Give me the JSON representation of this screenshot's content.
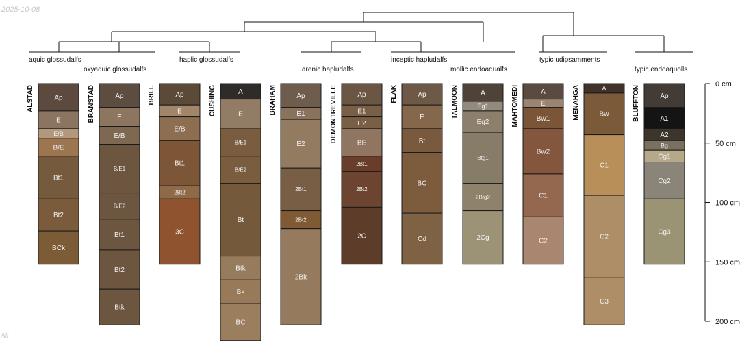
{
  "date_label": "2025-10-08",
  "corner_label": "All",
  "depth_axis": {
    "unit": "cm",
    "min": 0,
    "max": 200,
    "ticks": [
      0,
      50,
      100,
      150,
      200
    ],
    "tick_labels": [
      "0 cm",
      "50 cm",
      "100 cm",
      "150 cm",
      "200 cm"
    ]
  },
  "taxa": [
    "aquic glossudalfs",
    "oxyaquic glossudalfs",
    "haplic glossudalfs",
    "arenic hapludalfs",
    "inceptic hapludalfs",
    "mollic endoaqualfs",
    "typic udipsamments",
    "typic endoaquolls"
  ],
  "profiles": [
    {
      "name": "ALSTAD",
      "horizons": [
        {
          "name": "Ap",
          "top": 0,
          "bottom": 23,
          "color": "#5b4a3d"
        },
        {
          "name": "E",
          "top": 23,
          "bottom": 38,
          "color": "#8c7560"
        },
        {
          "name": "E/B",
          "top": 38,
          "bottom": 46,
          "color": "#b4987c"
        },
        {
          "name": "B/E",
          "top": 46,
          "bottom": 61,
          "color": "#9c7650"
        },
        {
          "name": "Bt1",
          "top": 61,
          "bottom": 97,
          "color": "#765a3e"
        },
        {
          "name": "Bt2",
          "top": 97,
          "bottom": 124,
          "color": "#7a5c3d"
        },
        {
          "name": "BCk",
          "top": 124,
          "bottom": 152,
          "color": "#7c5c37"
        }
      ]
    },
    {
      "name": "BRANSTAD",
      "horizons": [
        {
          "name": "Ap",
          "top": 0,
          "bottom": 20,
          "color": "#5d4c40"
        },
        {
          "name": "E",
          "top": 20,
          "bottom": 36,
          "color": "#8c7660"
        },
        {
          "name": "E/B",
          "top": 36,
          "bottom": 51,
          "color": "#7e6852"
        },
        {
          "name": "B/E1",
          "top": 51,
          "bottom": 92,
          "color": "#6c5640"
        },
        {
          "name": "B/E2",
          "top": 92,
          "bottom": 114,
          "color": "#6c5640"
        },
        {
          "name": "Bt1",
          "top": 114,
          "bottom": 140,
          "color": "#6c5640"
        },
        {
          "name": "Bt2",
          "top": 140,
          "bottom": 173,
          "color": "#6c5640"
        },
        {
          "name": "Btk",
          "top": 173,
          "bottom": 203,
          "color": "#6c5640"
        }
      ]
    },
    {
      "name": "BRILL",
      "horizons": [
        {
          "name": "Ap",
          "top": 0,
          "bottom": 18,
          "color": "#5b4a38"
        },
        {
          "name": "E",
          "top": 18,
          "bottom": 28,
          "color": "#a1866a"
        },
        {
          "name": "E/B",
          "top": 28,
          "bottom": 48,
          "color": "#8e6e50"
        },
        {
          "name": "Bt1",
          "top": 48,
          "bottom": 86,
          "color": "#7c5636"
        },
        {
          "name": "2Bt2",
          "top": 86,
          "bottom": 97,
          "color": "#8f6a48"
        },
        {
          "name": "3C",
          "top": 97,
          "bottom": 152,
          "color": "#8f5330"
        }
      ]
    },
    {
      "name": "CUSHING",
      "horizons": [
        {
          "name": "A",
          "top": 0,
          "bottom": 13,
          "color": "#2f2b28"
        },
        {
          "name": "E",
          "top": 13,
          "bottom": 38,
          "color": "#937c66"
        },
        {
          "name": "B/E1",
          "top": 38,
          "bottom": 61,
          "color": "#7a5c3e"
        },
        {
          "name": "B/E2",
          "top": 61,
          "bottom": 84,
          "color": "#7a5c3e"
        },
        {
          "name": "Bt",
          "top": 84,
          "bottom": 145,
          "color": "#74593b"
        },
        {
          "name": "Btk",
          "top": 145,
          "bottom": 165,
          "color": "#967b5c"
        },
        {
          "name": "Bk",
          "top": 165,
          "bottom": 185,
          "color": "#987a5a"
        },
        {
          "name": "BC",
          "top": 185,
          "bottom": 216,
          "color": "#9b7e5e"
        }
      ]
    },
    {
      "name": "BRAHAM",
      "horizons": [
        {
          "name": "Ap",
          "top": 0,
          "bottom": 20,
          "color": "#6e5c4c"
        },
        {
          "name": "E1",
          "top": 20,
          "bottom": 30,
          "color": "#8a735c"
        },
        {
          "name": "E2",
          "top": 30,
          "bottom": 71,
          "color": "#937b62"
        },
        {
          "name": "2Bt1",
          "top": 71,
          "bottom": 107,
          "color": "#785e44"
        },
        {
          "name": "2Bt2",
          "top": 107,
          "bottom": 122,
          "color": "#7f5a34"
        },
        {
          "name": "2Bk",
          "top": 122,
          "bottom": 203,
          "color": "#957a5e"
        }
      ]
    },
    {
      "name": "DEMONTREVILLE",
      "horizons": [
        {
          "name": "Ap",
          "top": 0,
          "bottom": 18,
          "color": "#6b5644"
        },
        {
          "name": "E1",
          "top": 18,
          "bottom": 28,
          "color": "#7a5f47"
        },
        {
          "name": "E2",
          "top": 28,
          "bottom": 38,
          "color": "#7a5f47"
        },
        {
          "name": "BE",
          "top": 38,
          "bottom": 61,
          "color": "#907560"
        },
        {
          "name": "2Bt1",
          "top": 61,
          "bottom": 74,
          "color": "#6a3d2a"
        },
        {
          "name": "2Bt2",
          "top": 74,
          "bottom": 104,
          "color": "#6c4430"
        },
        {
          "name": "2C",
          "top": 104,
          "bottom": 152,
          "color": "#5e3c2a"
        }
      ]
    },
    {
      "name": "FLAK",
      "horizons": [
        {
          "name": "Ap",
          "top": 0,
          "bottom": 18,
          "color": "#6e5846"
        },
        {
          "name": "E",
          "top": 18,
          "bottom": 38,
          "color": "#85684c"
        },
        {
          "name": "Bt",
          "top": 38,
          "bottom": 58,
          "color": "#7a5a3e"
        },
        {
          "name": "BC",
          "top": 58,
          "bottom": 109,
          "color": "#7d5c3e"
        },
        {
          "name": "Cd",
          "top": 109,
          "bottom": 152,
          "color": "#7f6244"
        }
      ]
    },
    {
      "name": "TALMOON",
      "horizons": [
        {
          "name": "A",
          "top": 0,
          "bottom": 15,
          "color": "#4f4338"
        },
        {
          "name": "Eg1",
          "top": 15,
          "bottom": 23,
          "color": "#938a7e"
        },
        {
          "name": "Eg2",
          "top": 23,
          "bottom": 41,
          "color": "#8c7f6c"
        },
        {
          "name": "Btg1",
          "top": 41,
          "bottom": 84,
          "color": "#877c68"
        },
        {
          "name": "2Btg2",
          "top": 84,
          "bottom": 107,
          "color": "#8f826b"
        },
        {
          "name": "2Cg",
          "top": 107,
          "bottom": 152,
          "color": "#9c9377"
        }
      ]
    },
    {
      "name": "MAHTOMEDI",
      "horizons": [
        {
          "name": "A",
          "top": 0,
          "bottom": 13,
          "color": "#5a4a3f"
        },
        {
          "name": "E",
          "top": 13,
          "bottom": 20,
          "color": "#9b8470"
        },
        {
          "name": "Bw1",
          "top": 20,
          "bottom": 38,
          "color": "#7a5538"
        },
        {
          "name": "Bw2",
          "top": 38,
          "bottom": 76,
          "color": "#85563e"
        },
        {
          "name": "C1",
          "top": 76,
          "bottom": 112,
          "color": "#94684f"
        },
        {
          "name": "C2",
          "top": 112,
          "bottom": 152,
          "color": "#a8866f"
        }
      ]
    },
    {
      "name": "MENAHGA",
      "horizons": [
        {
          "name": "A",
          "top": 0,
          "bottom": 8,
          "color": "#3f3228"
        },
        {
          "name": "Bw",
          "top": 8,
          "bottom": 43,
          "color": "#7a5a38"
        },
        {
          "name": "C1",
          "top": 43,
          "bottom": 94,
          "color": "#b88f58"
        },
        {
          "name": "C2",
          "top": 94,
          "bottom": 163,
          "color": "#ad8e66"
        },
        {
          "name": "C3",
          "top": 163,
          "bottom": 203,
          "color": "#ad8e66"
        }
      ]
    },
    {
      "name": "BLUFFTON",
      "horizons": [
        {
          "name": "Ap",
          "top": 0,
          "bottom": 20,
          "color": "#433c36"
        },
        {
          "name": "A1",
          "top": 20,
          "bottom": 38,
          "color": "#141414"
        },
        {
          "name": "A2",
          "top": 38,
          "bottom": 48,
          "color": "#3c352d"
        },
        {
          "name": "Bg",
          "top": 48,
          "bottom": 56,
          "color": "#7a7060"
        },
        {
          "name": "Cg1",
          "top": 56,
          "bottom": 66,
          "color": "#b5a98a"
        },
        {
          "name": "Cg2",
          "top": 66,
          "bottom": 97,
          "color": "#8a8578"
        },
        {
          "name": "Cg3",
          "top": 97,
          "bottom": 152,
          "color": "#9a9475"
        }
      ]
    }
  ]
}
